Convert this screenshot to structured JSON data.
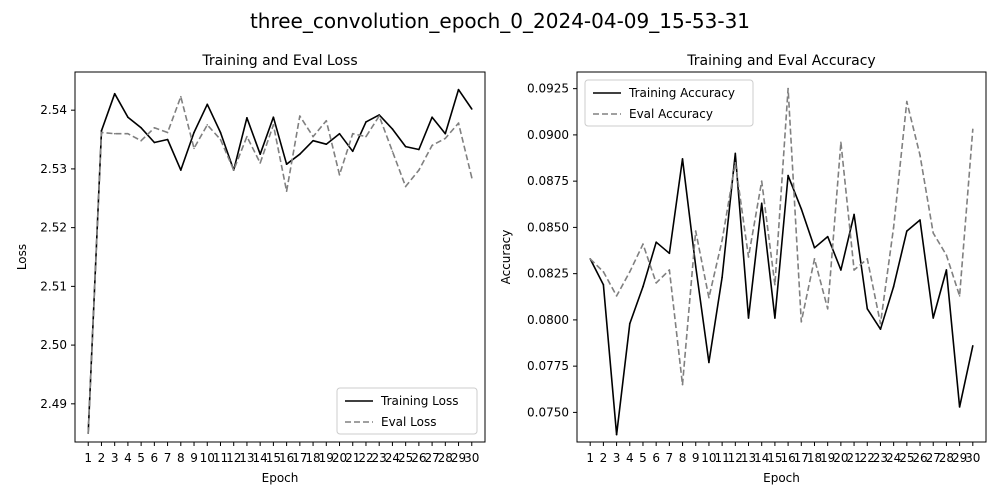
{
  "figure": {
    "title": "three_convolution_epoch_0_2024-04-09_15-53-31"
  },
  "chart_data": [
    {
      "type": "line",
      "title": "Training and Eval Loss",
      "xlabel": "Epoch",
      "ylabel": "Loss",
      "x": [
        1,
        2,
        3,
        4,
        5,
        6,
        7,
        8,
        9,
        10,
        11,
        12,
        13,
        14,
        15,
        16,
        17,
        18,
        19,
        20,
        21,
        22,
        23,
        24,
        25,
        26,
        27,
        28,
        29,
        30
      ],
      "xticks": [
        "1",
        "2",
        "3",
        "4",
        "5",
        "6",
        "7",
        "8",
        "9",
        "10",
        "11",
        "12",
        "13",
        "14",
        "15",
        "16",
        "17",
        "18",
        "19",
        "20",
        "21",
        "22",
        "23",
        "24",
        "25",
        "26",
        "27",
        "28",
        "29",
        "30"
      ],
      "yticks": [
        "2.49",
        "2.50",
        "2.51",
        "2.52",
        "2.53",
        "2.54"
      ],
      "ylim": [
        2.4835,
        2.5465
      ],
      "grid": false,
      "legend": "lower right",
      "series": [
        {
          "name": "Training Loss",
          "color": "#000000",
          "style": "solid",
          "values": [
            2.485,
            2.5365,
            2.5428,
            2.5388,
            2.537,
            2.5345,
            2.535,
            2.5298,
            2.5362,
            2.541,
            2.5362,
            2.5298,
            2.5387,
            2.5325,
            2.5388,
            2.5308,
            2.5325,
            2.5348,
            2.5342,
            2.536,
            2.533,
            2.538,
            2.5392,
            2.5368,
            2.5338,
            2.5333,
            2.5388,
            2.536,
            2.5435,
            2.5402
          ]
        },
        {
          "name": "Eval Loss",
          "color": "#808080",
          "style": "dashed",
          "values": [
            2.485,
            2.5362,
            2.536,
            2.536,
            2.5348,
            2.537,
            2.5362,
            2.5423,
            2.5335,
            2.5375,
            2.535,
            2.5298,
            2.5355,
            2.531,
            2.5375,
            2.5262,
            2.539,
            2.5355,
            2.5382,
            2.529,
            2.536,
            2.5355,
            2.539,
            2.533,
            2.527,
            2.5298,
            2.534,
            2.5352,
            2.5378,
            2.5285
          ]
        }
      ]
    },
    {
      "type": "line",
      "title": "Training and Eval Accuracy",
      "xlabel": "Epoch",
      "ylabel": "Accuracy",
      "x": [
        1,
        2,
        3,
        4,
        5,
        6,
        7,
        8,
        9,
        10,
        11,
        12,
        13,
        14,
        15,
        16,
        17,
        18,
        19,
        20,
        21,
        22,
        23,
        24,
        25,
        26,
        27,
        28,
        29,
        30
      ],
      "xticks": [
        "1",
        "2",
        "3",
        "4",
        "5",
        "6",
        "7",
        "8",
        "9",
        "10",
        "11",
        "12",
        "13",
        "14",
        "15",
        "16",
        "17",
        "18",
        "19",
        "20",
        "21",
        "22",
        "23",
        "24",
        "25",
        "26",
        "27",
        "28",
        "29",
        "30"
      ],
      "yticks": [
        "0.0750",
        "0.0775",
        "0.0800",
        "0.0825",
        "0.0850",
        "0.0875",
        "0.0900",
        "0.0925"
      ],
      "ylim": [
        0.0734,
        0.0934
      ],
      "grid": false,
      "legend": "upper left",
      "series": [
        {
          "name": "Training Accuracy",
          "color": "#000000",
          "style": "solid",
          "values": [
            0.0833,
            0.0819,
            0.0738,
            0.0798,
            0.0818,
            0.0842,
            0.0836,
            0.0887,
            0.0829,
            0.0777,
            0.0823,
            0.089,
            0.0801,
            0.0863,
            0.0801,
            0.0878,
            0.086,
            0.0839,
            0.0845,
            0.0827,
            0.0857,
            0.0806,
            0.0795,
            0.0818,
            0.0848,
            0.0854,
            0.0801,
            0.0827,
            0.0753,
            0.0786
          ]
        },
        {
          "name": "Eval Accuracy",
          "color": "#808080",
          "style": "dashed",
          "values": [
            0.0833,
            0.0826,
            0.0813,
            0.0826,
            0.0841,
            0.082,
            0.0827,
            0.0765,
            0.0848,
            0.0812,
            0.0843,
            0.0885,
            0.0834,
            0.0875,
            0.0819,
            0.0925,
            0.0799,
            0.0833,
            0.0806,
            0.0896,
            0.0827,
            0.0833,
            0.0798,
            0.085,
            0.0918,
            0.0889,
            0.0847,
            0.0835,
            0.0813,
            0.0903
          ]
        }
      ]
    }
  ]
}
